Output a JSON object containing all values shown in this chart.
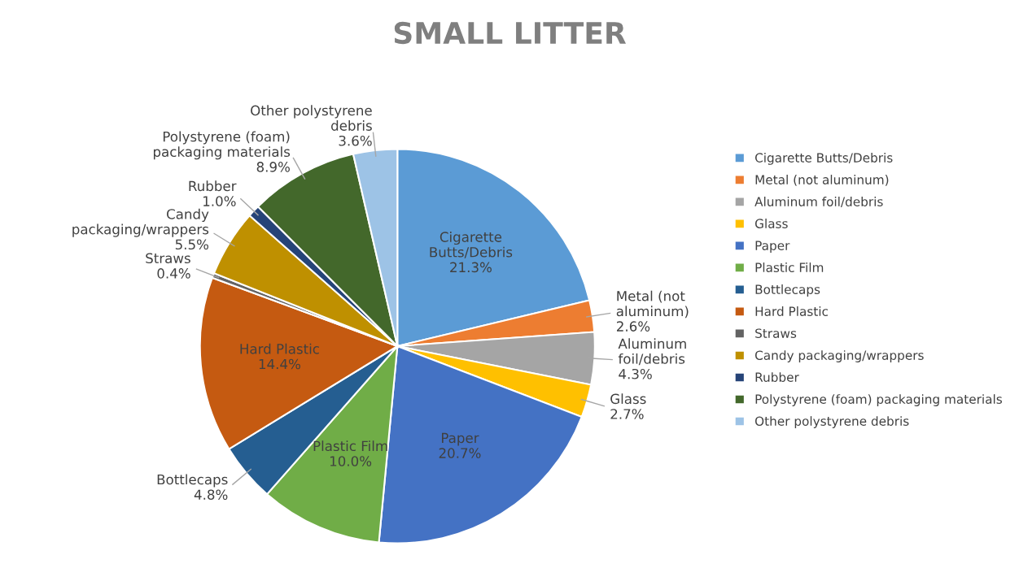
{
  "chart_data": {
    "type": "pie",
    "title": "SMALL LITTER",
    "categories": [
      "Cigarette Butts/Debris",
      "Metal (not aluminum)",
      "Aluminum foil/debris",
      "Glass",
      "Paper",
      "Plastic Film",
      "Bottlecaps",
      "Hard Plastic",
      "Straws",
      "Candy packaging/wrappers",
      "Rubber",
      "Polystyrene (foam) packaging materials",
      "Other polystyrene debris"
    ],
    "values": [
      21.3,
      2.6,
      4.3,
      2.7,
      20.7,
      10.0,
      4.8,
      14.4,
      0.4,
      5.5,
      1.0,
      8.9,
      3.6
    ],
    "colors": [
      "#5b9bd5",
      "#ed7d31",
      "#a5a5a5",
      "#ffc000",
      "#4472c4",
      "#70ad47",
      "#255e91",
      "#c55a11",
      "#636363",
      "#bf9000",
      "#264478",
      "#43682b",
      "#9dc3e6"
    ],
    "value_labels": [
      "21.3%",
      "2.6%",
      "4.3%",
      "2.7%",
      "20.7%",
      "10.0%",
      "4.8%",
      "14.4%",
      "0.4%",
      "5.5%",
      "1.0%",
      "8.9%",
      "3.6%"
    ],
    "legend": "right"
  }
}
